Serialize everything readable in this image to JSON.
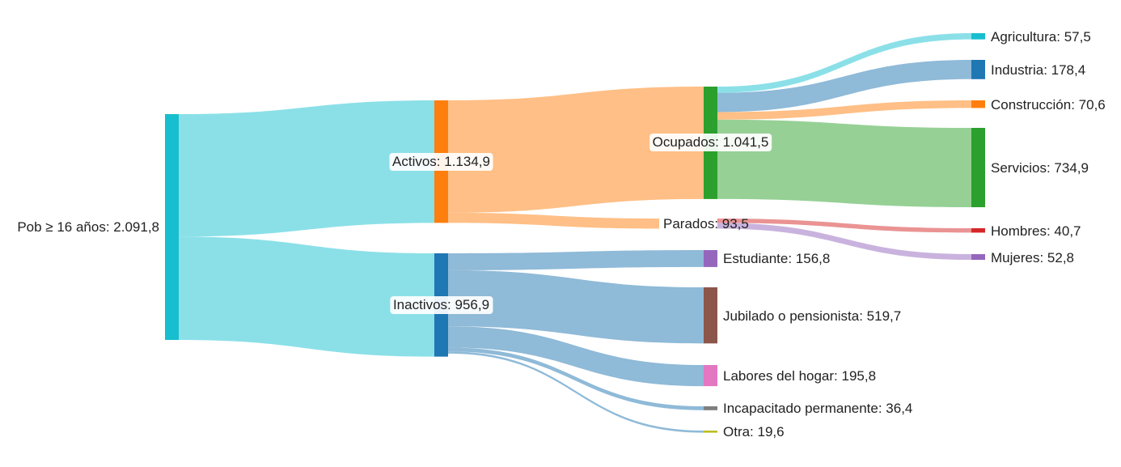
{
  "chart_data": {
    "type": "sankey",
    "nodes": [
      {
        "id": "pob",
        "label": "Pob ≥ 16 años: 2.091,8",
        "value": 2091.8,
        "color": "#17becf"
      },
      {
        "id": "activos",
        "label": "Activos: 1.134,9",
        "value": 1134.9,
        "color": "#ff7f0e"
      },
      {
        "id": "inactivos",
        "label": "Inactivos: 956,9",
        "value": 956.9,
        "color": "#1f77b4"
      },
      {
        "id": "ocupados",
        "label": "Ocupados: 1.041,5",
        "value": 1041.5,
        "color": "#2ca02c"
      },
      {
        "id": "parados",
        "label": "Parados: 93,5",
        "value": 93.5,
        "color": "#ffbf86"
      },
      {
        "id": "estudiante",
        "label": "Estudiante: 156,8",
        "value": 156.8,
        "color": "#9467bd"
      },
      {
        "id": "jubilado",
        "label": "Jubilado o pensionista: 519,7",
        "value": 519.7,
        "color": "#8c564b"
      },
      {
        "id": "labores",
        "label": "Labores del hogar: 195,8",
        "value": 195.8,
        "color": "#e377c2"
      },
      {
        "id": "incapacitado",
        "label": "Incapacitado permanente: 36,4",
        "value": 36.4,
        "color": "#7f7f7f"
      },
      {
        "id": "otra",
        "label": "Otra: 19,6",
        "value": 19.6,
        "color": "#bcbd22"
      },
      {
        "id": "agricultura",
        "label": "Agricultura: 57,5",
        "value": 57.5,
        "color": "#17becf"
      },
      {
        "id": "industria",
        "label": "Industria: 178,4",
        "value": 178.4,
        "color": "#1f77b4"
      },
      {
        "id": "construccion",
        "label": "Construcción: 70,6",
        "value": 70.6,
        "color": "#ff7f0e"
      },
      {
        "id": "servicios",
        "label": "Servicios: 734,9",
        "value": 734.9,
        "color": "#2ca02c"
      },
      {
        "id": "hombres",
        "label": "Hombres: 40,7",
        "value": 40.7,
        "color": "#d62728"
      },
      {
        "id": "mujeres",
        "label": "Mujeres: 52,8",
        "value": 52.8,
        "color": "#9467bd"
      }
    ],
    "links": [
      {
        "source": "pob",
        "target": "activos",
        "value": 1134.9,
        "color": "#8be0e8"
      },
      {
        "source": "pob",
        "target": "inactivos",
        "value": 956.9,
        "color": "#8be0e8"
      },
      {
        "source": "activos",
        "target": "ocupados",
        "value": 1041.5,
        "color": "#ffbf86"
      },
      {
        "source": "activos",
        "target": "parados",
        "value": 93.5,
        "color": "#ffbf86"
      },
      {
        "source": "inactivos",
        "target": "estudiante",
        "value": 156.8,
        "color": "#8fbad8"
      },
      {
        "source": "inactivos",
        "target": "jubilado",
        "value": 519.7,
        "color": "#8fbad8"
      },
      {
        "source": "inactivos",
        "target": "labores",
        "value": 195.8,
        "color": "#8fbad8"
      },
      {
        "source": "inactivos",
        "target": "incapacitado",
        "value": 36.4,
        "color": "#8fbad8"
      },
      {
        "source": "inactivos",
        "target": "otra",
        "value": 19.6,
        "color": "#8fbad8"
      },
      {
        "source": "ocupados",
        "target": "agricultura",
        "value": 57.5,
        "color": "#8be0e8"
      },
      {
        "source": "ocupados",
        "target": "industria",
        "value": 178.4,
        "color": "#8fbad8"
      },
      {
        "source": "ocupados",
        "target": "construccion",
        "value": 70.6,
        "color": "#ffbf86"
      },
      {
        "source": "ocupados",
        "target": "servicios",
        "value": 734.9,
        "color": "#96d095"
      },
      {
        "source": "parados",
        "target": "hombres",
        "value": 40.7,
        "color": "#ea9393"
      },
      {
        "source": "parados",
        "target": "mujeres",
        "value": 52.8,
        "color": "#c9b3de"
      }
    ]
  }
}
